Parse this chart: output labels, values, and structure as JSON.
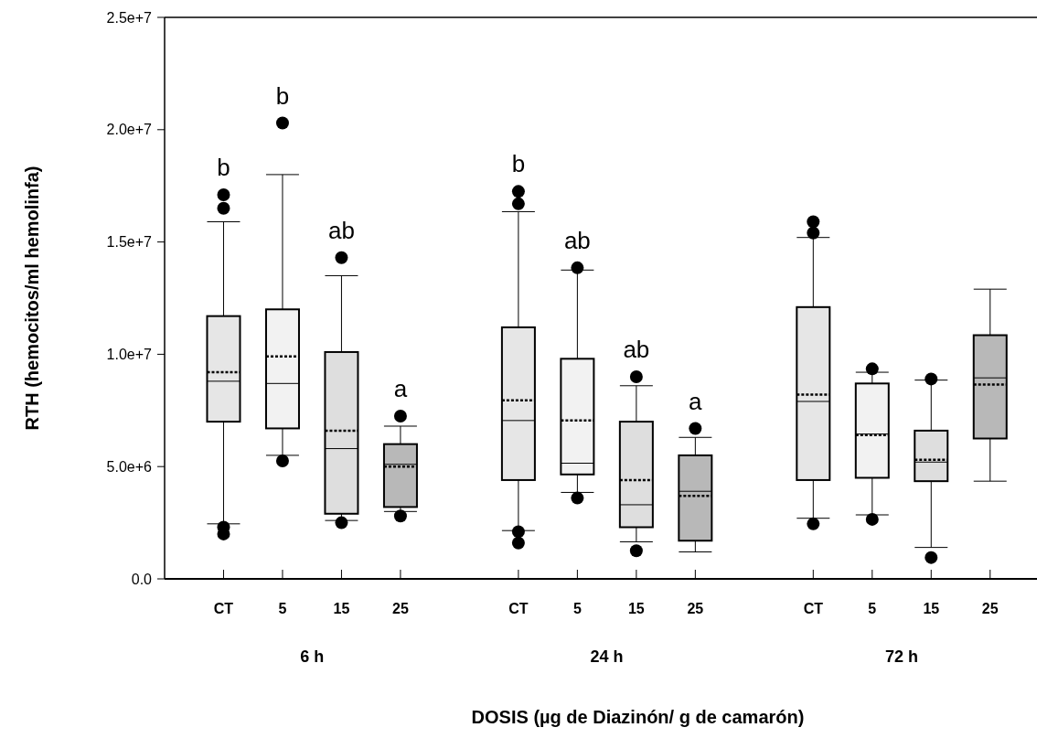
{
  "chart_data": {
    "type": "box",
    "xlabel": "DOSIS (µg de Diazinón/ g de camarón)",
    "ylabel": "RTH (hemocitos/ml hemolinfa)",
    "categories": [
      "CT",
      "5",
      "15",
      "25",
      null,
      "CT",
      "5",
      "15",
      "25",
      null,
      "CT",
      "5",
      "15",
      "25"
    ],
    "colors": [
      "#e6e6e6",
      "#f2f2f2",
      "#dedede",
      "#b8b8b8",
      null,
      "#e6e6e6",
      "#f2f2f2",
      "#dedede",
      "#b8b8b8",
      null,
      "#e6e6e6",
      "#f2f2f2",
      "#dedede",
      "#b8b8b8"
    ],
    "boxes": [
      {
        "low": 2450000,
        "q1": 7000000,
        "median": 8800000,
        "q3": 11700000,
        "high": 15900000,
        "mean": 9200000,
        "outliers": [
          17100000,
          16500000,
          2300000,
          2000000
        ]
      },
      {
        "low": 5500000,
        "q1": 6700000,
        "median": 8700000,
        "q3": 12000000,
        "high": 18000000,
        "mean": 9900000,
        "outliers": [
          20300000,
          5250000
        ]
      },
      {
        "low": 2600000,
        "q1": 2900000,
        "median": 5800000,
        "q3": 10100000,
        "high": 13500000,
        "mean": 6600000,
        "outliers": [
          14300000,
          2500000
        ]
      },
      {
        "low": 3000000,
        "q1": 3200000,
        "median": 5100000,
        "q3": 6000000,
        "high": 6800000,
        "mean": 5000000,
        "outliers": [
          7250000,
          2800000
        ]
      },
      null,
      {
        "low": 2150000,
        "q1": 4400000,
        "median": 7050000,
        "q3": 11200000,
        "high": 16350000,
        "mean": 7950000,
        "outliers": [
          17250000,
          16700000,
          2100000,
          1600000
        ]
      },
      {
        "low": 3850000,
        "q1": 4650000,
        "median": 5150000,
        "q3": 9800000,
        "high": 13750000,
        "mean": 7050000,
        "outliers": [
          13850000,
          3600000
        ]
      },
      {
        "low": 1650000,
        "q1": 2300000,
        "median": 3300000,
        "q3": 7000000,
        "high": 8600000,
        "mean": 4400000,
        "outliers": [
          9000000,
          1250000
        ]
      },
      {
        "low": 1200000,
        "q1": 1700000,
        "median": 3900000,
        "q3": 5500000,
        "high": 6300000,
        "mean": 3700000,
        "outliers": [
          6700000
        ]
      },
      null,
      {
        "low": 2700000,
        "q1": 4400000,
        "median": 7900000,
        "q3": 12100000,
        "high": 15200000,
        "mean": 8200000,
        "outliers": [
          15900000,
          15400000,
          2450000
        ]
      },
      {
        "low": 2850000,
        "q1": 4500000,
        "median": 6450000,
        "q3": 8700000,
        "high": 9200000,
        "mean": 6400000,
        "outliers": [
          9350000,
          2650000
        ]
      },
      {
        "low": 1400000,
        "q1": 4350000,
        "median": 5200000,
        "q3": 6600000,
        "high": 8850000,
        "mean": 5300000,
        "outliers": [
          8900000,
          950000
        ]
      },
      {
        "low": 4350000,
        "q1": 6250000,
        "median": 8950000,
        "q3": 10850000,
        "high": 12900000,
        "mean": 8650000
      }
    ],
    "ylim": [
      0,
      25000000
    ],
    "yticks": [
      {
        "value": 0,
        "label": "0.0"
      },
      {
        "value": 5000000,
        "label": "5.0e+6"
      },
      {
        "value": 10000000,
        "label": "1.0e+7"
      },
      {
        "value": 15000000,
        "label": "1.5e+7"
      },
      {
        "value": 20000000,
        "label": "2.0e+7"
      },
      {
        "value": 25000000,
        "label": "2.5e+7"
      }
    ],
    "annotations": [
      "b",
      "b",
      "ab",
      "a",
      "b",
      "ab",
      "ab",
      "a",
      "6 h",
      "24 h",
      "72 h"
    ],
    "grid": false
  }
}
